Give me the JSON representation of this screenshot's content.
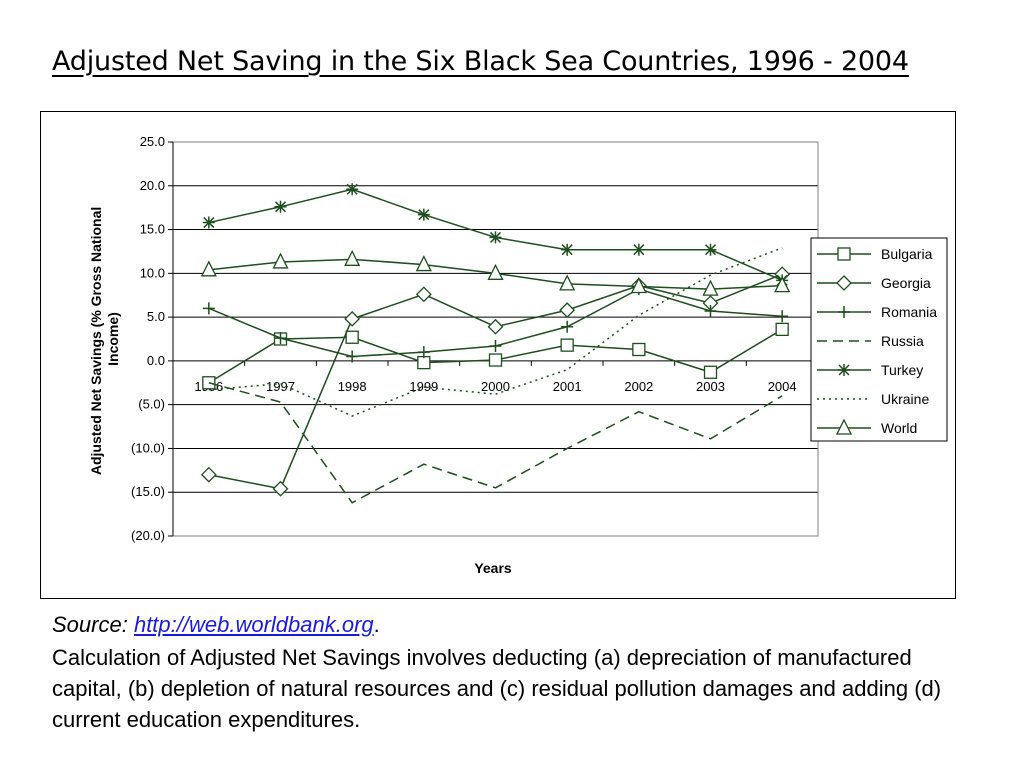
{
  "slide": {
    "title": "Adjusted Net Saving in the Six Black Sea Countries, 1996 - 2004",
    "source_label": "Source:",
    "source_link": "http://web.worldbank.org",
    "source_trailing": ".",
    "note": "Calculation of Adjusted Net Savings involves deducting (a) depreciation of manufactured capital, (b) depletion of natural resources and (c) residual pollution damages and adding (d) current education expenditures."
  },
  "colors": {
    "series": "#1e4d1e",
    "gridline": "#000000",
    "link": "#1a1adc"
  },
  "chart_data": {
    "type": "line",
    "title": "",
    "xlabel": "Years",
    "ylabel": "Adjusted Net Savings (% Gross National Income)",
    "x": [
      "1996",
      "1997",
      "1998",
      "1999",
      "2000",
      "2001",
      "2002",
      "2003",
      "2004"
    ],
    "ylim": [
      -20,
      25
    ],
    "yticks": [
      25,
      20,
      15,
      10,
      5,
      0,
      -5,
      -10,
      -15,
      -20
    ],
    "ytick_labels": [
      "25.0",
      "20.0",
      "15.0",
      "10.0",
      "5.0",
      "0.0",
      "(5.0)",
      "(10.0)",
      "(15.0)",
      "(20.0)"
    ],
    "grid": true,
    "legend_position": "right",
    "series": [
      {
        "name": "Bulgaria",
        "marker": "square",
        "dash": "solid",
        "values": [
          -2.5,
          2.5,
          2.7,
          -0.2,
          0.1,
          1.8,
          1.3,
          -1.3,
          3.6
        ]
      },
      {
        "name": "Georgia",
        "marker": "diamond",
        "dash": "solid",
        "values": [
          -13.0,
          -14.6,
          4.8,
          7.6,
          3.9,
          5.8,
          8.6,
          6.6,
          9.9
        ]
      },
      {
        "name": "Romania",
        "marker": "plus",
        "dash": "solid",
        "values": [
          6.0,
          2.6,
          0.5,
          1.0,
          1.7,
          3.9,
          8.2,
          5.7,
          5.1
        ]
      },
      {
        "name": "Russia",
        "marker": "none",
        "dash": "longdash",
        "values": [
          -2.5,
          -4.7,
          -16.2,
          -11.8,
          -14.5,
          -10.0,
          -5.8,
          -8.9,
          -4.0
        ]
      },
      {
        "name": "Turkey",
        "marker": "star",
        "dash": "solid",
        "values": [
          15.8,
          17.6,
          19.6,
          16.7,
          14.1,
          12.7,
          12.7,
          12.7,
          9.2
        ]
      },
      {
        "name": "Ukraine",
        "marker": "none",
        "dash": "dotted",
        "values": [
          -3.3,
          -2.6,
          -6.3,
          -3.0,
          -3.8,
          -1.0,
          5.2,
          9.8,
          12.9
        ]
      },
      {
        "name": "World",
        "marker": "triangle",
        "dash": "solid",
        "values": [
          10.4,
          11.3,
          11.6,
          11.0,
          10.0,
          8.8,
          8.5,
          8.2,
          8.6
        ]
      }
    ]
  }
}
